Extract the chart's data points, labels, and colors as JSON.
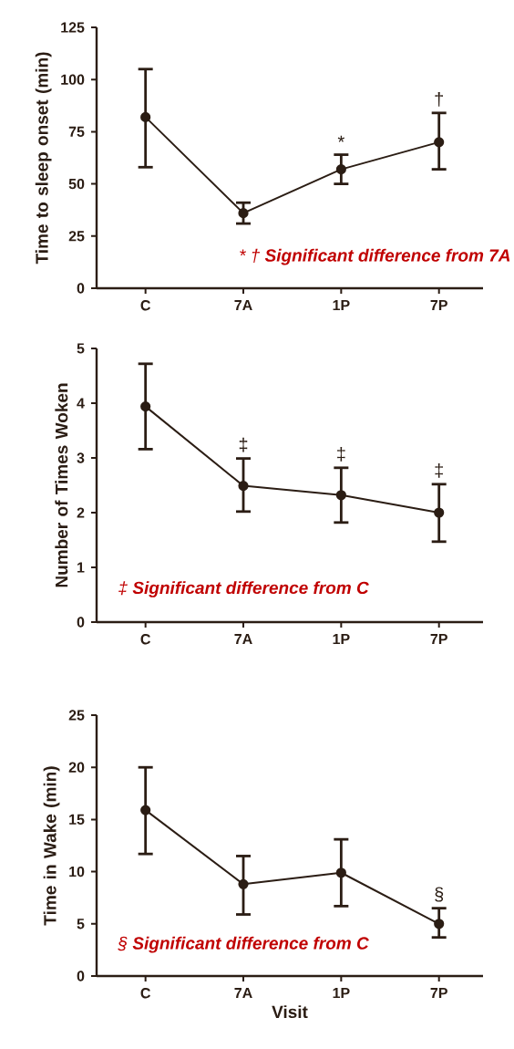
{
  "chart_data": [
    {
      "type": "line",
      "ylabel": "Time to sleep onset (min)",
      "categories": [
        "C",
        "7A",
        "1P",
        "7P"
      ],
      "values": [
        82,
        36,
        57,
        70
      ],
      "errors": [
        [
          58,
          105
        ],
        [
          31,
          41
        ],
        [
          50,
          64
        ],
        [
          57,
          84
        ]
      ],
      "color": "#2b1d14",
      "marker": "circle",
      "ylim": [
        0,
        125
      ],
      "yticks": [
        0,
        25,
        50,
        75,
        100,
        125
      ],
      "annotations": [
        "*",
        "†",
        "* † **Significant difference from 7A**"
      ]
    },
    {
      "type": "line",
      "ylabel": "Number of Times Woken",
      "categories": [
        "C",
        "7A",
        "1P",
        "7P"
      ],
      "values": [
        3.94,
        2.49,
        2.32,
        2.0
      ],
      "errors": [
        [
          3.16,
          4.72
        ],
        [
          2.02,
          2.99
        ],
        [
          1.82,
          2.82
        ],
        [
          1.47,
          2.52
        ]
      ],
      "color": "#2b1d14",
      "marker": "circle",
      "ylim": [
        0,
        5
      ],
      "yticks": [
        0,
        1,
        2,
        3,
        4,
        5
      ],
      "annotations": [
        "‡",
        "‡",
        "‡",
        "‡ **Significant difference from C**"
      ]
    },
    {
      "type": "line",
      "xlabel": "Visit",
      "ylabel": "Time in Wake (min)",
      "categories": [
        "C",
        "7A",
        "1P",
        "7P"
      ],
      "values": [
        15.9,
        8.8,
        9.9,
        5.0
      ],
      "errors": [
        [
          11.7,
          20
        ],
        [
          5.9,
          11.5
        ],
        [
          6.7,
          13.1
        ],
        [
          3.7,
          6.5
        ]
      ],
      "color": "#2b1d14",
      "marker": "circle",
      "ylim": [
        0,
        25
      ],
      "yticks": [
        0,
        5,
        10,
        15,
        20,
        25
      ],
      "annotations": [
        "§",
        "§ **Significant difference from C**"
      ]
    }
  ]
}
